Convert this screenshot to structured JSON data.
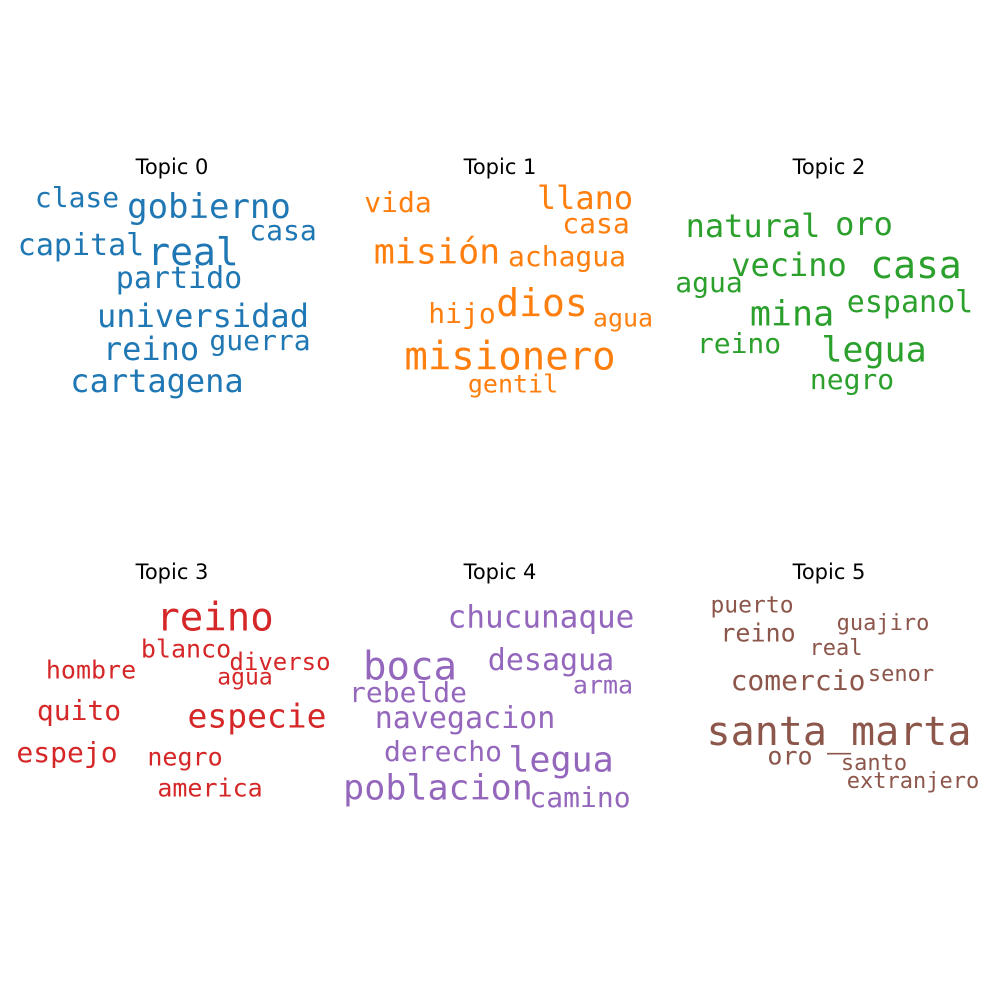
{
  "chart_data": {
    "type": "wordcloud",
    "topics": [
      {
        "title": "Topic 0",
        "color": "#1f77b4",
        "words": [
          {
            "text": "clase",
            "weight": 0.55
          },
          {
            "text": "gobierno",
            "weight": 0.67
          },
          {
            "text": "casa",
            "weight": 0.55
          },
          {
            "text": "capital",
            "weight": 0.6
          },
          {
            "text": "real",
            "weight": 0.75
          },
          {
            "text": "partido",
            "weight": 0.6
          },
          {
            "text": "universidad",
            "weight": 0.63
          },
          {
            "text": "reino",
            "weight": 0.63
          },
          {
            "text": "guerra",
            "weight": 0.55
          },
          {
            "text": "cartagena",
            "weight": 0.63
          }
        ]
      },
      {
        "title": "Topic 1",
        "color": "#ff7f0e",
        "words": [
          {
            "text": "vida",
            "weight": 0.55
          },
          {
            "text": "llano",
            "weight": 0.63
          },
          {
            "text": "casa",
            "weight": 0.55
          },
          {
            "text": "misión",
            "weight": 0.7
          },
          {
            "text": "achagua",
            "weight": 0.55
          },
          {
            "text": "dios",
            "weight": 0.75
          },
          {
            "text": "hijo",
            "weight": 0.55
          },
          {
            "text": "agua",
            "weight": 0.5
          },
          {
            "text": "misionero",
            "weight": 0.78
          },
          {
            "text": "gentil",
            "weight": 0.5
          }
        ]
      },
      {
        "title": "Topic 2",
        "color": "#2ca02c",
        "words": [
          {
            "text": "natural",
            "weight": 0.63
          },
          {
            "text": "oro",
            "weight": 0.63
          },
          {
            "text": "vecino",
            "weight": 0.63
          },
          {
            "text": "casa",
            "weight": 0.75
          },
          {
            "text": "agua",
            "weight": 0.55
          },
          {
            "text": "mina",
            "weight": 0.7
          },
          {
            "text": "espanol",
            "weight": 0.6
          },
          {
            "text": "reino",
            "weight": 0.55
          },
          {
            "text": "legua",
            "weight": 0.7
          },
          {
            "text": "negro",
            "weight": 0.55
          }
        ]
      },
      {
        "title": "Topic 3",
        "color": "#d62728",
        "words": [
          {
            "text": "reino",
            "weight": 0.78
          },
          {
            "text": "blanco",
            "weight": 0.5
          },
          {
            "text": "hombre",
            "weight": 0.5
          },
          {
            "text": "diverso",
            "weight": 0.48
          },
          {
            "text": "agua",
            "weight": 0.45
          },
          {
            "text": "quito",
            "weight": 0.55
          },
          {
            "text": "especie",
            "weight": 0.66
          },
          {
            "text": "espejo",
            "weight": 0.57
          },
          {
            "text": "negro",
            "weight": 0.5
          },
          {
            "text": "america",
            "weight": 0.5
          }
        ]
      },
      {
        "title": "Topic 4",
        "color": "#9467bd",
        "words": [
          {
            "text": "chucunaque",
            "weight": 0.62
          },
          {
            "text": "boca",
            "weight": 0.78
          },
          {
            "text": "desagua",
            "weight": 0.6
          },
          {
            "text": "rebelde",
            "weight": 0.55
          },
          {
            "text": "arma",
            "weight": 0.5
          },
          {
            "text": "navegacion",
            "weight": 0.6
          },
          {
            "text": "derecho",
            "weight": 0.55
          },
          {
            "text": "legua",
            "weight": 0.7
          },
          {
            "text": "poblacion",
            "weight": 0.7
          },
          {
            "text": "camino",
            "weight": 0.55
          }
        ]
      },
      {
        "title": "Topic 5",
        "color": "#8c564b",
        "words": [
          {
            "text": "puerto",
            "weight": 0.45
          },
          {
            "text": "guajiro",
            "weight": 0.43
          },
          {
            "text": "reino",
            "weight": 0.5
          },
          {
            "text": "real",
            "weight": 0.43
          },
          {
            "text": "comercio",
            "weight": 0.55
          },
          {
            "text": "senor",
            "weight": 0.43
          },
          {
            "text": "santa_marta",
            "weight": 0.8
          },
          {
            "text": "oro",
            "weight": 0.5
          },
          {
            "text": "santo",
            "weight": 0.43
          },
          {
            "text": "extranjero",
            "weight": 0.43
          }
        ]
      }
    ]
  }
}
